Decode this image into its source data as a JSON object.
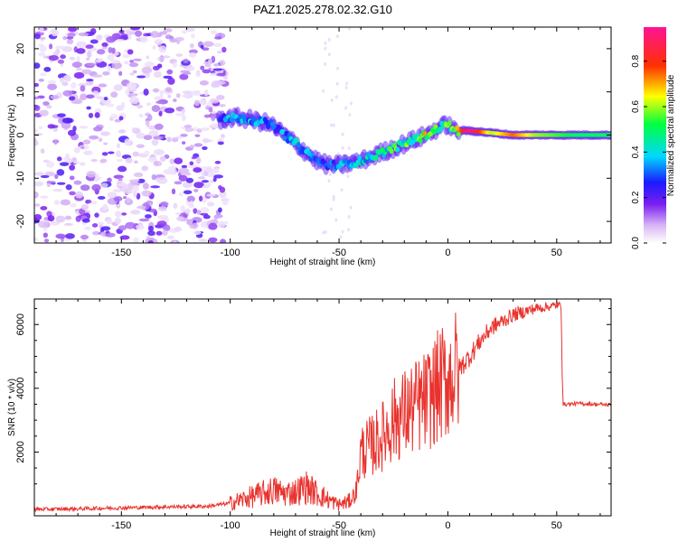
{
  "figure_title": "PAZ1.2025.278.02.32.G10",
  "colors": {
    "snr_line": "#e8332e",
    "axis": "#000000",
    "background": "#ffffff"
  },
  "chart_data": [
    {
      "type": "heatmap",
      "title": "PAZ1.2025.278.02.32.G10",
      "xlabel": "Height of straight line (km)",
      "ylabel": "Frequency (Hz)",
      "xlim": [
        -190,
        75
      ],
      "ylim": [
        -25,
        25
      ],
      "xticks": [
        -150,
        -100,
        -50,
        0,
        50
      ],
      "yticks": [
        -20,
        -10,
        0,
        10,
        20
      ],
      "colorbar": {
        "label": "Normalized spectral amplitude",
        "range": [
          0.0,
          0.95
        ],
        "ticks": [
          0.0,
          0.2,
          0.4,
          0.6,
          0.8
        ],
        "colormap": "rainbow (violet-blue-cyan-green-yellow-red-magenta)"
      },
      "ridge": {
        "x_km": [
          -105,
          -100,
          -95,
          -90,
          -85,
          -80,
          -75,
          -70,
          -65,
          -60,
          -55,
          -50,
          -45,
          -40,
          -35,
          -30,
          -25,
          -20,
          -15,
          -10,
          -5,
          0,
          3,
          10,
          20,
          30,
          40,
          50,
          60,
          75
        ],
        "freq_hz": [
          3.5,
          4,
          4,
          3.5,
          3,
          2,
          0,
          -2,
          -4,
          -6,
          -7,
          -7,
          -6.5,
          -6,
          -5,
          -4,
          -3,
          -2,
          -1,
          0,
          1.5,
          2.5,
          1,
          1,
          0.5,
          0,
          0,
          0,
          0,
          0
        ],
        "amplitude": [
          0.3,
          0.35,
          0.4,
          0.35,
          0.35,
          0.3,
          0.35,
          0.4,
          0.35,
          0.3,
          0.3,
          0.35,
          0.35,
          0.45,
          0.4,
          0.45,
          0.5,
          0.5,
          0.55,
          0.6,
          0.55,
          0.5,
          0.6,
          0.95,
          0.6,
          0.75,
          0.6,
          0.55,
          0.5,
          0.5
        ]
      },
      "noise_region_km": [
        -190,
        -102
      ]
    },
    {
      "type": "line",
      "xlabel": "Height of straight line (km)",
      "ylabel": "SNR (10 * v/v)",
      "xlim": [
        -190,
        75
      ],
      "ylim": [
        0,
        6800
      ],
      "xticks": [
        -150,
        -100,
        -50,
        0,
        50
      ],
      "yticks": [
        2000,
        4000,
        6000
      ],
      "series": [
        {
          "name": "SNR",
          "x": [
            -190,
            -170,
            -150,
            -130,
            -110,
            -100,
            -90,
            -80,
            -75,
            -70,
            -65,
            -60,
            -55,
            -50,
            -45,
            -42,
            -40,
            -35,
            -30,
            -25,
            -20,
            -15,
            -10,
            -5,
            0,
            5,
            10,
            15,
            20,
            25,
            30,
            35,
            40,
            45,
            50,
            52,
            53,
            60,
            75
          ],
          "y": [
            200,
            220,
            250,
            280,
            300,
            400,
            600,
            800,
            700,
            750,
            900,
            700,
            500,
            350,
            450,
            800,
            2000,
            2200,
            2500,
            3000,
            3200,
            3400,
            3600,
            4000,
            4300,
            4600,
            5000,
            5500,
            5900,
            6100,
            6300,
            6400,
            6500,
            6550,
            6600,
            6600,
            3500,
            3520,
            3480
          ]
        }
      ]
    }
  ]
}
